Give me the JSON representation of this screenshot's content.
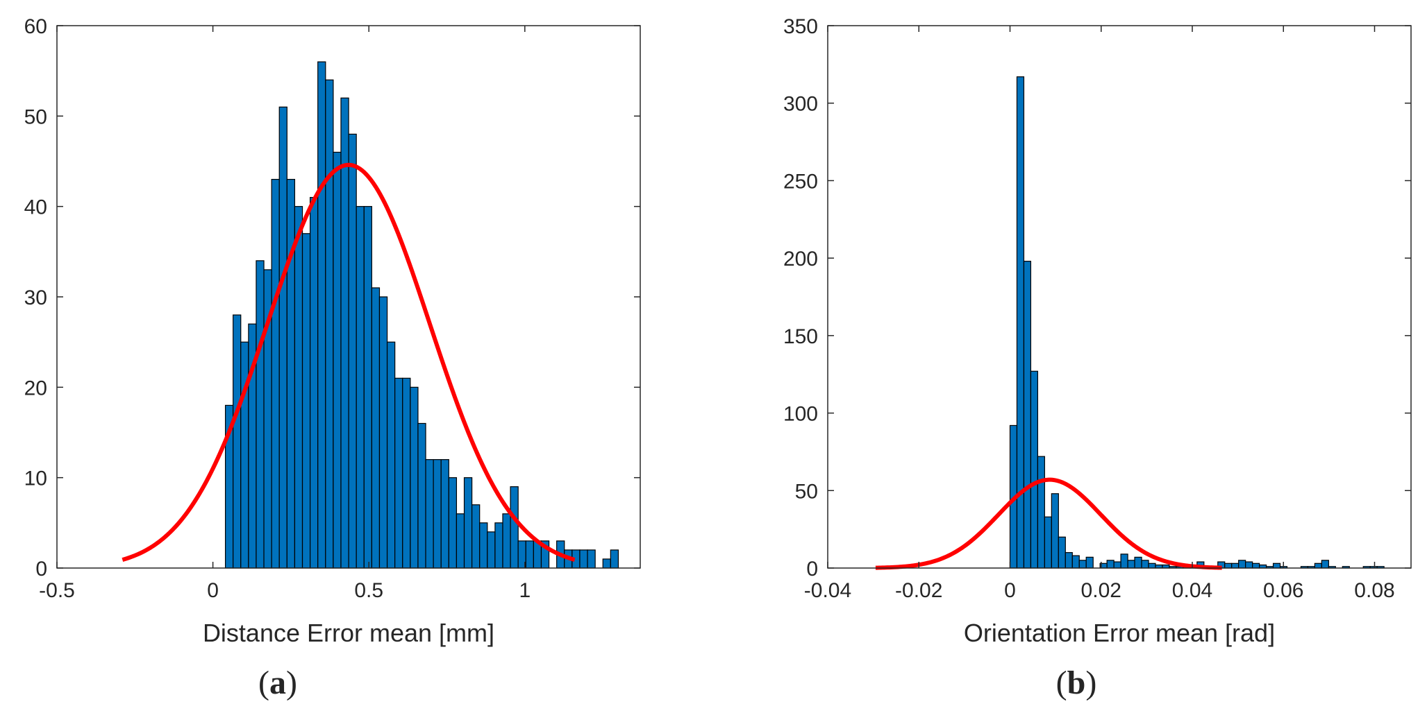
{
  "chart_data": [
    {
      "type": "histogram",
      "panel_label": "a",
      "xlabel": "Distance Error mean [mm]",
      "ylabel": "",
      "xlim": [
        -0.5,
        1.37
      ],
      "ylim": [
        0,
        60
      ],
      "xticks": [
        -0.5,
        0,
        0.5,
        1
      ],
      "xtick_labels": [
        "-0.5",
        "0",
        "0.5",
        "1"
      ],
      "yticks": [
        0,
        10,
        20,
        30,
        40,
        50,
        60
      ],
      "ytick_labels": [
        "0",
        "10",
        "20",
        "30",
        "40",
        "50",
        "60"
      ],
      "bin_start": 0.04,
      "bin_width": 0.0247,
      "counts": [
        18,
        28,
        25,
        27,
        34,
        33,
        43,
        51,
        43,
        40,
        37,
        41,
        56,
        54,
        46,
        52,
        48,
        40,
        40,
        31,
        30,
        25,
        21,
        21,
        20,
        16,
        12,
        12,
        12,
        10,
        6,
        10,
        7,
        5,
        4,
        5,
        6,
        9,
        3,
        3,
        3,
        3,
        0,
        3,
        2,
        2,
        2,
        2,
        0,
        1,
        2
      ],
      "fit_curve": {
        "type": "normal",
        "mu": 0.435,
        "sigma": 0.26,
        "peak": 44.6,
        "x_range": [
          -0.29,
          1.16
        ]
      },
      "colors": {
        "bar": "#0072BD",
        "edge": "#000000",
        "fit": "#FF0000"
      }
    },
    {
      "type": "histogram",
      "panel_label": "b",
      "xlabel": "Orientation Error mean [rad]",
      "ylabel": "",
      "xlim": [
        -0.04,
        0.088
      ],
      "ylim": [
        0,
        350
      ],
      "xticks": [
        -0.04,
        -0.02,
        0,
        0.02,
        0.04,
        0.06,
        0.08
      ],
      "xtick_labels": [
        "-0.04",
        "-0.02",
        "0",
        "0.02",
        "0.04",
        "0.06",
        "0.08"
      ],
      "yticks": [
        0,
        50,
        100,
        150,
        200,
        250,
        300,
        350
      ],
      "ytick_labels": [
        "0",
        "50",
        "100",
        "150",
        "200",
        "250",
        "300",
        "350"
      ],
      "bin_start": 0,
      "bin_width": 0.00152,
      "counts": [
        92,
        317,
        198,
        127,
        72,
        33,
        48,
        20,
        10,
        8,
        5,
        7,
        0,
        3,
        5,
        4,
        9,
        5,
        7,
        5,
        3,
        2,
        2,
        1,
        1,
        1,
        2,
        4,
        1,
        0,
        4,
        3,
        3,
        5,
        4,
        3,
        2,
        1,
        3,
        1,
        0,
        0,
        1,
        1,
        3,
        5,
        1,
        0,
        1,
        0,
        0,
        1,
        1,
        1
      ],
      "fit_curve": {
        "type": "normal",
        "mu": 0.0087,
        "sigma": 0.0112,
        "peak": 57,
        "x_range": [
          -0.0295,
          0.0465
        ]
      },
      "colors": {
        "bar": "#0072BD",
        "edge": "#000000",
        "fit": "#FF0000"
      }
    }
  ]
}
